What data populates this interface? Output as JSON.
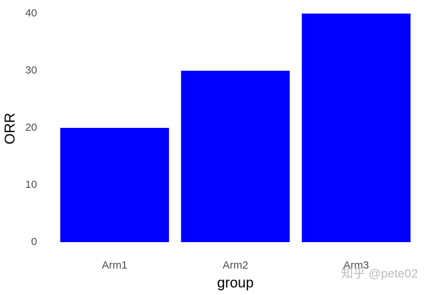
{
  "chart_data": {
    "type": "bar",
    "x_label": "group",
    "y_label": "ORR",
    "categories": [
      "Arm1",
      "Arm2",
      "Arm3"
    ],
    "values": [
      20,
      30,
      40
    ],
    "color": "#0000ff",
    "ylim": [
      -2,
      42
    ],
    "yticks": [
      0,
      10,
      20,
      30,
      40
    ],
    "grid": false
  },
  "watermark": "知乎 @pete02"
}
